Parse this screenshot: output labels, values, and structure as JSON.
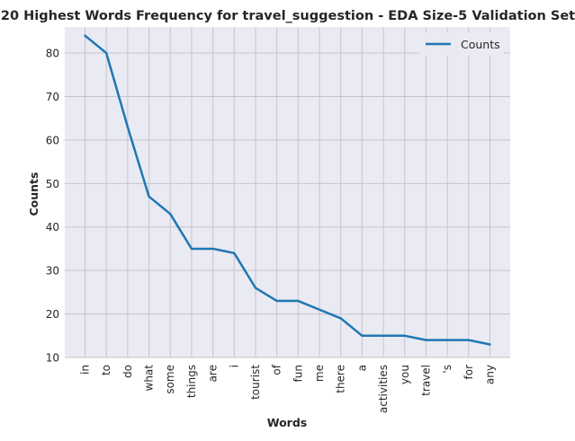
{
  "chart_data": {
    "type": "line",
    "title": "20 Highest Words Frequency for travel_suggestion - EDA Size-5 Validation Set",
    "xlabel": "Words",
    "ylabel": "Counts",
    "categories": [
      "in",
      "to",
      "do",
      "what",
      "some",
      "things",
      "are",
      "i",
      "tourist",
      "of",
      "fun",
      "me",
      "there",
      "a",
      "activities",
      "you",
      "travel",
      "'s",
      "for",
      "any"
    ],
    "series": [
      {
        "name": "Counts",
        "values": [
          84,
          80,
          63,
          47,
          43,
          35,
          35,
          34,
          26,
          23,
          23,
          21,
          19,
          15,
          15,
          15,
          14,
          14,
          14,
          13
        ],
        "color": "#1f77b4"
      }
    ],
    "ylim": [
      10,
      86
    ],
    "yticks": [
      10,
      20,
      30,
      40,
      50,
      60,
      70,
      80
    ],
    "grid": true,
    "legend_position": "upper right",
    "colors": {
      "plot_background": "#eaeaf2",
      "grid": "#c4c4cc",
      "line": "#1f77b4",
      "text": "#262626"
    }
  }
}
